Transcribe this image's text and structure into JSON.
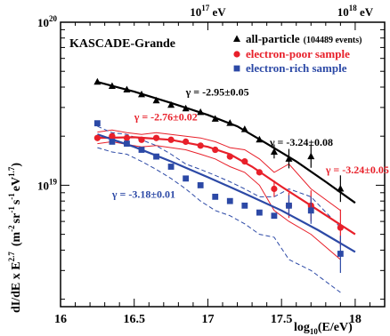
{
  "chart_data": {
    "type": "scatter",
    "title": "",
    "xlabel_main": "log",
    "xlabel_sub": "10",
    "xlabel_rest": "(E/eV)",
    "ylabel": "dI/dE x  E^2.7 (m^-2 sr^-1 s^-1 eV^1.7)",
    "ylabel_base": "dI/dE x  E",
    "ylabel_exp": "2.7",
    "ylabel_units": "(m",
    "ylabel_units_exp1": "-2",
    "ylabel_units_mid1": "sr",
    "ylabel_units_exp2": "-1",
    "ylabel_units_mid2": "s",
    "ylabel_units_exp3": "-1",
    "ylabel_units_mid3": "eV",
    "ylabel_units_exp4": "1.7",
    "ylabel_units_end": ")",
    "x_axis": {
      "min": 16.0,
      "max": 18.2,
      "scale": "linear",
      "ticks": [
        "16",
        "16.5",
        "17",
        "17.5",
        "18"
      ]
    },
    "y_axis": {
      "min": 1.8e+18,
      "max": 1e+20,
      "scale": "log",
      "tick_labels": [
        {
          "base": "10",
          "exp": "19",
          "value": 1e+19
        },
        {
          "base": "10",
          "exp": "20",
          "value": 1e+20
        }
      ]
    },
    "top_axis": {
      "labels": [
        {
          "base": "10",
          "exp": "17",
          "unit": " eV",
          "log_value": 17
        },
        {
          "base": "10",
          "exp": "18",
          "unit": " eV",
          "log_value": 18
        }
      ]
    },
    "experiment_label": "KASCADE-Grande",
    "legend": {
      "position": "top-right",
      "entries": [
        {
          "label": "all-particle",
          "note": "(104489 events)",
          "color": "#000000",
          "marker": "triangle"
        },
        {
          "label": "electron-poor sample",
          "note": "",
          "color": "#e8202a",
          "marker": "circle"
        },
        {
          "label": "electron-rich sample",
          "note": "",
          "color": "#2c49a6",
          "marker": "square"
        }
      ]
    },
    "annotations": [
      {
        "text": "γ = -2.95±0.05",
        "color": "#000000",
        "x": 16.85,
        "y": 3.55e+19
      },
      {
        "text": "γ = -3.24±0.08",
        "color": "#000000",
        "x": 17.42,
        "y": 1.75e+19
      },
      {
        "text": "γ = -2.76±0.02",
        "color": "#e8202a",
        "x": 16.5,
        "y": 2.5e+19
      },
      {
        "text": "γ = -3.24±0.05",
        "color": "#e8202a",
        "x": 17.8,
        "y": 1.18e+19
      },
      {
        "text": "γ = -3.18±0.01",
        "color": "#2c49a6",
        "x": 16.35,
        "y": 8.4e+18
      }
    ],
    "series": [
      {
        "name": "all-particle",
        "color": "#000000",
        "marker": "triangle",
        "x": [
          16.25,
          16.35,
          16.45,
          16.55,
          16.65,
          16.75,
          16.85,
          16.95,
          17.05,
          17.15,
          17.25,
          17.35,
          17.45,
          17.55,
          17.7,
          17.9
        ],
        "y": [
          4.3e+19,
          4.05e+19,
          3.85e+19,
          3.6e+19,
          3.3e+19,
          3.1e+19,
          2.95e+19,
          2.8e+19,
          2.55e+19,
          2.4e+19,
          2.2e+19,
          1.9e+19,
          1.6e+19,
          1.45e+19,
          1.5e+19,
          9.5e+18
        ],
        "yerr_hi": [
          0,
          0,
          0,
          0,
          0,
          0,
          0,
          0,
          0,
          0,
          0,
          0,
          1.8e+18,
          2.2e+18,
          2.8e+18,
          2e+18
        ],
        "yerr_lo": [
          0,
          0,
          0,
          0,
          0,
          0,
          0,
          0,
          0,
          0,
          0,
          0,
          1.4e+18,
          1.8e+18,
          2.2e+18,
          1.6e+18
        ]
      },
      {
        "name": "electron-poor sample",
        "color": "#e8202a",
        "marker": "circle",
        "x": [
          16.25,
          16.35,
          16.45,
          16.55,
          16.65,
          16.75,
          16.85,
          16.95,
          17.05,
          17.15,
          17.25,
          17.35,
          17.45,
          17.55,
          17.7,
          17.9
        ],
        "y": [
          1.95e+19,
          2e+19,
          1.95e+19,
          1.9e+19,
          1.95e+19,
          1.9e+19,
          1.85e+19,
          1.75e+19,
          1.65e+19,
          1.5e+19,
          1.4e+19,
          1.2e+19,
          9.5e+18,
          7.5e+18,
          7.5e+18,
          5.5e+18
        ],
        "yerr_hi": [
          0,
          0,
          0,
          0,
          0,
          0,
          0,
          0,
          0,
          0,
          0,
          0,
          1.2e+18,
          1.5e+18,
          1.8e+18,
          1.6e+18
        ],
        "yerr_lo": [
          0,
          0,
          0,
          0,
          0,
          0,
          0,
          0,
          0,
          0,
          0,
          0,
          1e+18,
          1.2e+18,
          1.5e+18,
          1.3e+18
        ]
      },
      {
        "name": "electron-rich sample",
        "color": "#2c49a6",
        "marker": "square",
        "x": [
          16.25,
          16.35,
          16.45,
          16.55,
          16.65,
          16.75,
          16.85,
          16.95,
          17.05,
          17.15,
          17.25,
          17.35,
          17.45,
          17.55,
          17.7,
          17.9
        ],
        "y": [
          2.4e+19,
          1.85e+19,
          1.8e+19,
          1.65e+19,
          1.5e+19,
          1.3e+19,
          1.1e+19,
          1e+19,
          8.5e+18,
          8e+18,
          7.5e+18,
          6.8e+18,
          6.5e+18,
          7.5e+18,
          7e+18,
          3.8e+18
        ],
        "yerr_hi": [
          0,
          0,
          0,
          0,
          0,
          0,
          0,
          0,
          0,
          0,
          0,
          0,
          0,
          1.2e+18,
          1.5e+18,
          1.1e+18
        ],
        "yerr_lo": [
          0,
          0,
          0,
          0,
          0,
          0,
          0,
          0,
          0,
          0,
          0,
          0,
          0,
          1e+18,
          1.2e+18,
          9e+17
        ]
      }
    ],
    "fits": [
      {
        "color": "#000000",
        "x": [
          16.25,
          16.5,
          16.75,
          17.0,
          17.2,
          17.4,
          17.6,
          17.8,
          18.0
        ],
        "y": [
          4.3e+19,
          3.75e+19,
          3.2e+19,
          2.7e+19,
          2.3e+19,
          1.8e+19,
          1.4e+19,
          1.05e+19,
          7.8e+18
        ]
      },
      {
        "color": "#e8202a",
        "x": [
          16.25,
          16.5,
          16.75,
          17.0,
          17.15,
          17.3,
          17.5,
          17.7,
          18.0
        ],
        "y": [
          1.95e+19,
          1.97e+19,
          1.9e+19,
          1.72e+19,
          1.55e+19,
          1.3e+19,
          9.8e+18,
          7.5e+18,
          5e+18
        ]
      },
      {
        "color": "#2c49a6",
        "x": [
          16.25,
          16.5,
          16.75,
          17.0,
          17.25,
          17.5,
          17.75,
          18.0
        ],
        "y": [
          2.05e+19,
          1.72e+19,
          1.4e+19,
          1.12e+19,
          8.9e+18,
          7e+18,
          5.3e+18,
          3.9e+18
        ]
      }
    ],
    "bands": [
      {
        "color": "#e8202a",
        "style": "solid",
        "x": [
          16.25,
          16.35,
          16.45,
          16.55,
          16.65,
          16.75,
          16.85,
          16.95,
          17.05,
          17.15,
          17.25,
          17.35,
          17.45,
          17.55,
          17.7,
          17.9
        ],
        "upper": [
          2.12e+19,
          2.18e+19,
          2.1e+19,
          2.05e+19,
          2.1e+19,
          2.05e+19,
          2e+19,
          1.95e+19,
          1.85e+19,
          1.7e+19,
          1.65e+19,
          1.45e+19,
          1.2e+19,
          1.35e+19,
          9.5e+18,
          7e+18
        ],
        "lower": [
          1.8e+19,
          1.85e+19,
          1.78e+19,
          1.72e+19,
          1.75e+19,
          1.7e+19,
          1.65e+19,
          1.55e+19,
          1.45e+19,
          1.3e+19,
          1.2e+19,
          1e+19,
          7e+18,
          6e+18,
          5e+18,
          3.5e+18
        ]
      },
      {
        "color": "#2c49a6",
        "style": "dashed",
        "x": [
          16.25,
          16.35,
          16.45,
          16.55,
          16.65,
          16.75,
          16.85,
          16.95,
          17.05,
          17.15,
          17.25,
          17.35,
          17.45,
          17.55,
          17.7,
          17.9
        ],
        "upper": [
          2.3e+19,
          2.1e+19,
          2.05e+19,
          1.9e+19,
          1.75e+19,
          1.55e+19,
          1.35e+19,
          1.25e+19,
          1.15e+19,
          1.05e+19,
          9.5e+18,
          8.5e+18,
          8.5e+18,
          9.5e+18,
          8.5e+18,
          5.5e+18
        ],
        "lower": [
          1.7e+19,
          1.6e+19,
          1.55e+19,
          1.4e+19,
          1.25e+19,
          1.1e+19,
          9.5e+18,
          8e+18,
          7e+18,
          6.5e+18,
          5.8e+18,
          5e+18,
          4.8e+18,
          3.5e+18,
          3e+18,
          2.2e+18
        ]
      }
    ]
  }
}
